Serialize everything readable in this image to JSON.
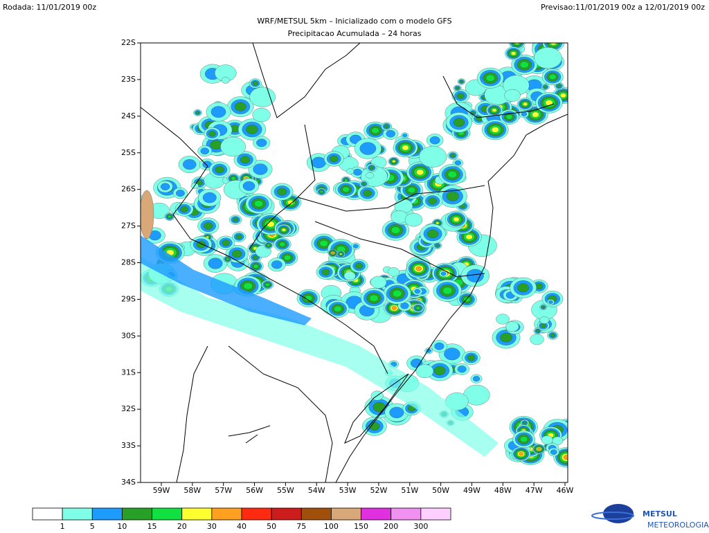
{
  "header": {
    "run": "Rodada: 11/01/2019 00z",
    "forecast": "Previsao:11/01/2019 00z a 12/01/2019 00z",
    "title": "WRF/METSUL 5km – Inicializado com o modelo GFS",
    "subtitle": "Precipitacao Acumulada – 24 horas"
  },
  "map": {
    "lat_labels": [
      "22S",
      "23S",
      "24S",
      "25S",
      "26S",
      "27S",
      "28S",
      "29S",
      "30S",
      "31S",
      "32S",
      "33S",
      "34S"
    ],
    "lon_labels": [
      "59W",
      "58W",
      "57W",
      "56W",
      "55W",
      "54W",
      "53W",
      "52W",
      "51W",
      "50W",
      "49W",
      "48W",
      "47W",
      "46W"
    ]
  },
  "colorbar": {
    "labels": [
      1,
      5,
      10,
      15,
      20,
      30,
      40,
      50,
      75,
      100,
      150,
      200,
      300
    ],
    "colors": [
      "#ffffff",
      "#80ffe8",
      "#1e9bff",
      "#28a028",
      "#10e040",
      "#ffff30",
      "#ffa020",
      "#ff2a10",
      "#cc1c1c",
      "#a0500a",
      "#d8a878",
      "#e030e0",
      "#f090f0",
      "#ffd0ff"
    ]
  },
  "logo": {
    "name": "METSUL",
    "tagline": "METEOROLOGIA"
  }
}
